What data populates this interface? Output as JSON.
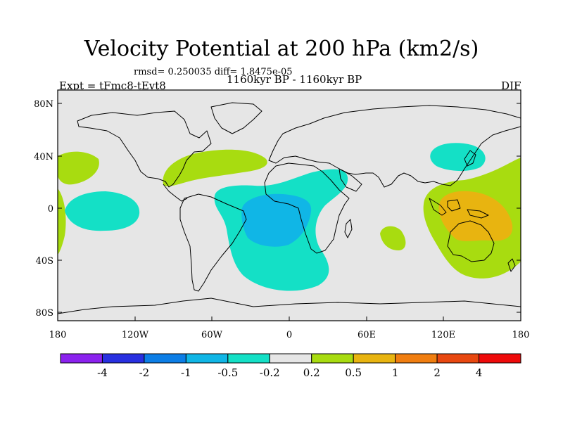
{
  "title": "Velocity Potential at 200 hPa (km2/s)",
  "stats": "rmsd= 0.250035 diff= 1.8475e-05",
  "expt": "Expt = tFmc8-tEvt8",
  "period": "1160kyr BP - 1160kyr BP",
  "season": "DJF",
  "map": {
    "background_color": "#e6e6e6",
    "lat_ticks": [
      "80N",
      "40N",
      "0",
      "40S",
      "80S"
    ],
    "lon_ticks": [
      "180",
      "120W",
      "60W",
      "0",
      "60E",
      "120E",
      "180"
    ]
  },
  "colorbar": {
    "colors": [
      "#8b22ee",
      "#2830e0",
      "#0c7ee6",
      "#10b6e6",
      "#14e0c6",
      "#e6e6e6",
      "#a8dc10",
      "#e8b410",
      "#f07e10",
      "#e84810",
      "#ee0a0a"
    ],
    "labels": [
      "-4",
      "-2",
      "-1",
      "-0.5",
      "-0.2",
      "0.2",
      "0.5",
      "1",
      "2",
      "4"
    ]
  }
}
